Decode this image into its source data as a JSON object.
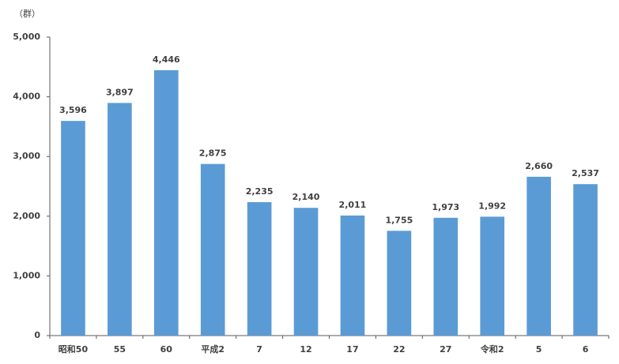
{
  "chart_data": {
    "type": "bar",
    "y_unit": "（群）",
    "categories": [
      "昭和50",
      "55",
      "60",
      "平成2",
      "7",
      "12",
      "17",
      "22",
      "27",
      "令和2",
      "5",
      "6"
    ],
    "values": [
      3596,
      3897,
      4446,
      2875,
      2235,
      2140,
      2011,
      1755,
      1973,
      1992,
      2660,
      2537
    ],
    "value_labels": [
      "3,596",
      "3,897",
      "4,446",
      "2,875",
      "2,235",
      "2,140",
      "2,011",
      "1,755",
      "1,973",
      "1,992",
      "2,660",
      "2,537"
    ],
    "color": "#5b9bd5",
    "ylim": [
      0,
      5000
    ],
    "yticks": [
      0,
      {
        "value": 1000,
        "label": "1,000"
      },
      {
        "value": 2000,
        "label": "2,000"
      },
      {
        "value": 3000,
        "label": "3,000"
      },
      {
        "value": 4000,
        "label": "4,000"
      },
      {
        "value": 5000,
        "label": "5,000"
      }
    ],
    "grid": false
  }
}
